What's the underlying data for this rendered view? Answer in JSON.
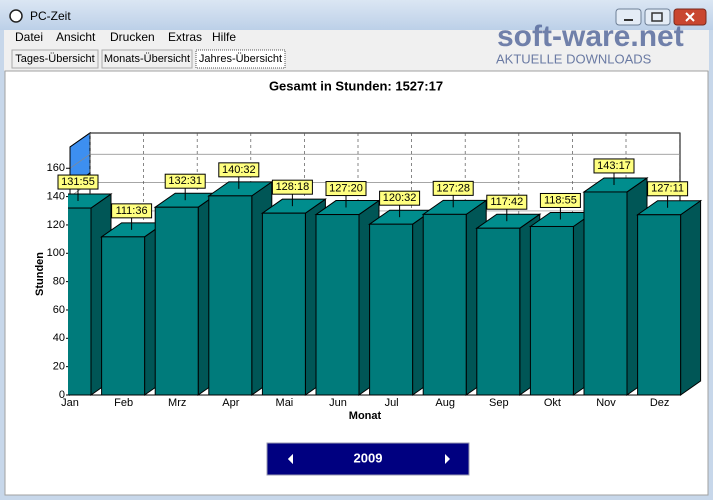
{
  "window": {
    "title": "PC-Zeit"
  },
  "menu": [
    "Datei",
    "Ansicht",
    "Drucken",
    "Extras",
    "Hilfe"
  ],
  "watermark": {
    "name": "soft-ware.net",
    "tagline": "AKTUELLE DOWNLOADS"
  },
  "tabs": [
    "Tages-Übersicht",
    "Monats-Übersicht",
    "Jahres-Übersicht"
  ],
  "chart_data": {
    "type": "bar3d",
    "title": "Gesamt in Stunden: 1527:17",
    "x_label": "Monat",
    "y_label": "Stunden",
    "categories": [
      "Jan",
      "Feb",
      "Mrz",
      "Apr",
      "Mai",
      "Jun",
      "Jul",
      "Aug",
      "Sep",
      "Okt",
      "Nov",
      "Dez"
    ],
    "values": [
      131.92,
      111.6,
      132.52,
      140.53,
      128.3,
      127.33,
      120.53,
      127.47,
      117.7,
      118.92,
      143.28,
      127.18
    ],
    "value_labels": [
      "131:55",
      "111:36",
      "132:31",
      "140:32",
      "128:18",
      "127:20",
      "120:32",
      "127:28",
      "117:42",
      "118:55",
      "143:17",
      "127:11"
    ],
    "color": "#007b7b",
    "ylim": [
      0,
      175
    ],
    "yticks": [
      0,
      20,
      40,
      60,
      80,
      100,
      120,
      140,
      160
    ],
    "grid": true
  },
  "navigator": {
    "year": "2009"
  }
}
